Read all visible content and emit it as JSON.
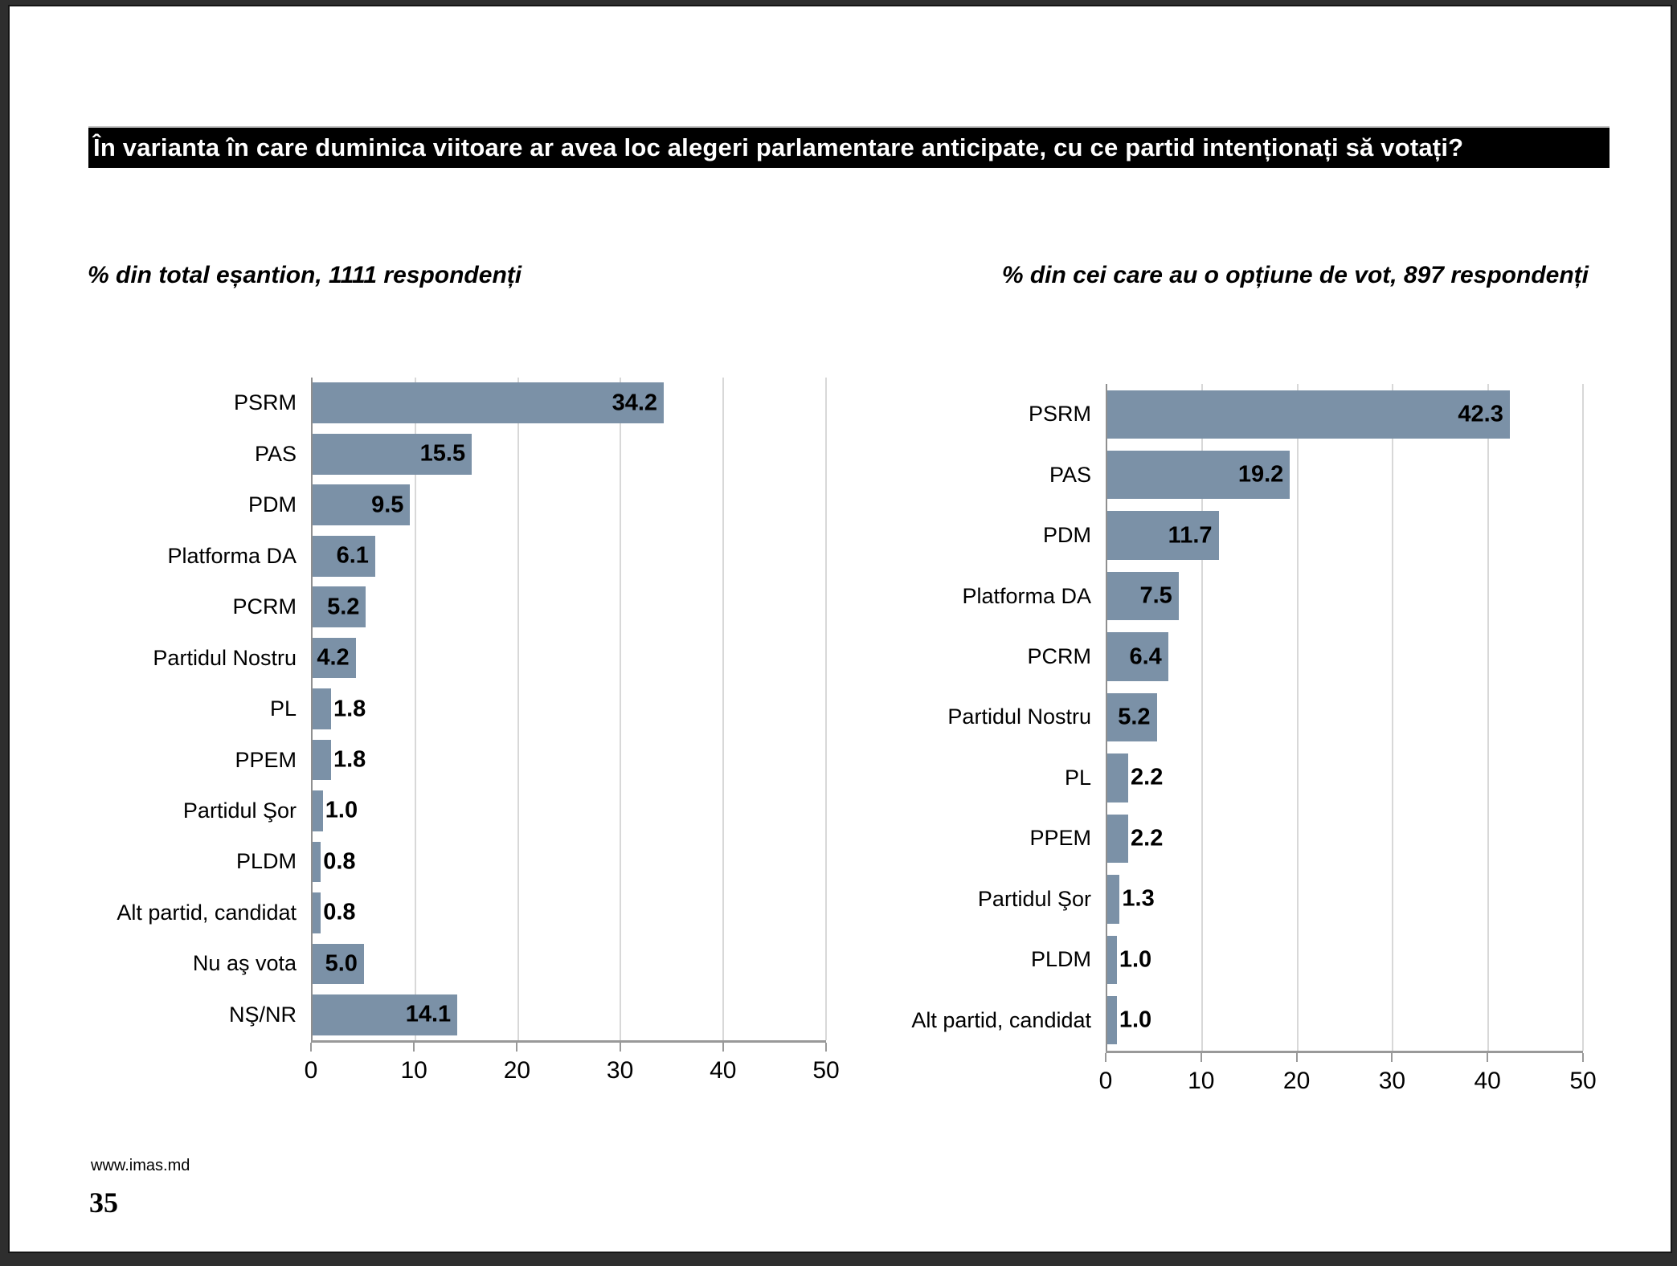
{
  "page": {
    "title": "În varianta în care duminica viitoare ar avea loc alegeri parlamentare anticipate, cu ce partid intenționați să votați?",
    "footer_url": "www.imas.md",
    "page_number": "35"
  },
  "colors": {
    "bar": "#7b91a7",
    "title_background": "#000000",
    "title_text": "#ffffff",
    "gridline": "#d8d8d8",
    "axis_line": "#999999",
    "frame": "#2e2e2e"
  },
  "chart_data": [
    {
      "type": "bar",
      "orientation": "horizontal",
      "title": "% din total eșantion, 1111 respondenți",
      "categories": [
        "PSRM",
        "PAS",
        "PDM",
        "Platforma DA",
        "PCRM",
        "Partidul Nostru",
        "PL",
        "PPEM",
        "Partidul Şor",
        "PLDM",
        "Alt partid, candidat",
        "Nu aş vota",
        "NŞ/NR"
      ],
      "values": [
        34.2,
        15.5,
        9.5,
        6.1,
        5.2,
        4.2,
        1.8,
        1.8,
        1.0,
        0.8,
        0.8,
        5.0,
        14.1
      ],
      "value_labels": [
        "34.2",
        "15.5",
        "9.5",
        "6.1",
        "5.2",
        "4.2",
        "1.8",
        "1.8",
        "1.0",
        "0.8",
        "0.8",
        "5.0",
        "14.1"
      ],
      "xlim": [
        0,
        50
      ],
      "xticks": [
        0,
        10,
        20,
        30,
        40,
        50
      ],
      "grid": true,
      "legend": false,
      "inside_label_min": 4.0
    },
    {
      "type": "bar",
      "orientation": "horizontal",
      "title": "% din cei care au o opțiune de vot, 897 respondenți",
      "categories": [
        "PSRM",
        "PAS",
        "PDM",
        "Platforma DA",
        "PCRM",
        "Partidul Nostru",
        "PL",
        "PPEM",
        "Partidul Şor",
        "PLDM",
        "Alt partid, candidat"
      ],
      "values": [
        42.3,
        19.2,
        11.7,
        7.5,
        6.4,
        5.2,
        2.2,
        2.2,
        1.3,
        1.0,
        1.0
      ],
      "value_labels": [
        "42.3",
        "19.2",
        "11.7",
        "7.5",
        "6.4",
        "5.2",
        "2.2",
        "2.2",
        "1.3",
        "1.0",
        "1.0"
      ],
      "xlim": [
        0,
        50
      ],
      "xticks": [
        0,
        10,
        20,
        30,
        40,
        50
      ],
      "grid": true,
      "legend": false,
      "inside_label_min": 4.0
    }
  ]
}
